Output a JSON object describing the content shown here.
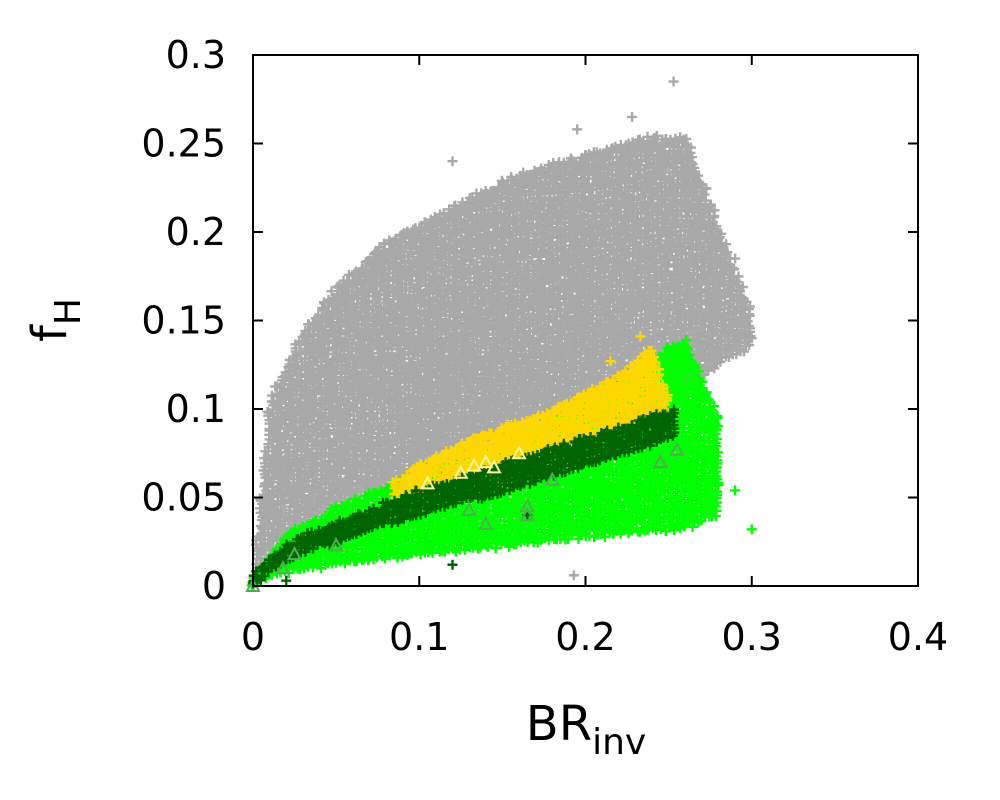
{
  "chart_data": {
    "type": "scatter",
    "title": "",
    "xlabel": {
      "main": "BR",
      "sub": "inv"
    },
    "ylabel": {
      "main": "f",
      "sub": "H"
    },
    "xlim": [
      0,
      0.4
    ],
    "ylim": [
      0,
      0.3
    ],
    "xticks": [
      0,
      0.1,
      0.2,
      0.3,
      0.4
    ],
    "xtick_labels": [
      "0",
      "0.1",
      "0.2",
      "0.3",
      "0.4"
    ],
    "yticks": [
      0,
      0.05,
      0.1,
      0.15,
      0.2,
      0.25,
      0.3
    ],
    "ytick_labels": [
      "0",
      "0.05",
      "0.1",
      "0.15",
      "0.2",
      "0.25",
      "0.3"
    ],
    "grid": false,
    "legend": "none",
    "series": [
      {
        "color": "#a9a9a9",
        "marker": "plus",
        "region": {
          "x": [
            0,
            0.01,
            0.03,
            0.05,
            0.08,
            0.1,
            0.12,
            0.15,
            0.18,
            0.2,
            0.22,
            0.24,
            0.26,
            0.28,
            0.3
          ],
          "y_lower": [
            0,
            0.02,
            0.035,
            0.045,
            0.055,
            0.06,
            0.066,
            0.074,
            0.082,
            0.088,
            0.094,
            0.1,
            0.108,
            0.125,
            0.135
          ],
          "y_upper": [
            0,
            0.1,
            0.14,
            0.165,
            0.19,
            0.2,
            0.21,
            0.225,
            0.235,
            0.24,
            0.245,
            0.25,
            0.25,
            0.2,
            0.15
          ]
        },
        "outliers": [
          [
            0.253,
            0.285
          ],
          [
            0.228,
            0.265
          ],
          [
            0.195,
            0.258
          ],
          [
            0.12,
            0.24
          ],
          [
            0.29,
            0.185
          ],
          [
            0.3,
            0.14
          ],
          [
            0.27,
            0.155
          ],
          [
            0.193,
            0.006
          ]
        ]
      },
      {
        "color": "#00ff00",
        "marker": "plus",
        "region": {
          "x": [
            0,
            0.02,
            0.05,
            0.1,
            0.15,
            0.2,
            0.24,
            0.26,
            0.28
          ],
          "y_lower": [
            0,
            0.007,
            0.012,
            0.017,
            0.022,
            0.027,
            0.031,
            0.032,
            0.04
          ],
          "y_upper": [
            0,
            0.025,
            0.04,
            0.06,
            0.075,
            0.1,
            0.125,
            0.135,
            0.09
          ]
        },
        "outliers": [
          [
            0.29,
            0.054
          ],
          [
            0.3,
            0.032
          ],
          [
            0.28,
            0.057
          ]
        ]
      },
      {
        "color": "#ffd700",
        "marker": "plus",
        "region": {
          "x": [
            0.085,
            0.12,
            0.15,
            0.18,
            0.2,
            0.22,
            0.24,
            0.25
          ],
          "y_lower": [
            0.05,
            0.06,
            0.068,
            0.076,
            0.082,
            0.088,
            0.094,
            0.098
          ],
          "y_upper": [
            0.055,
            0.075,
            0.085,
            0.095,
            0.105,
            0.115,
            0.13,
            0.1
          ]
        },
        "outliers": [
          [
            0.233,
            0.141
          ],
          [
            0.215,
            0.127
          ]
        ]
      },
      {
        "color": "#006400",
        "marker": "plus",
        "region": {
          "x": [
            0,
            0.02,
            0.05,
            0.1,
            0.15,
            0.2,
            0.25,
            0.255
          ],
          "y_lower": [
            0,
            0.014,
            0.025,
            0.04,
            0.053,
            0.067,
            0.082,
            0.085
          ],
          "y_upper": [
            0.002,
            0.02,
            0.032,
            0.05,
            0.065,
            0.08,
            0.095,
            0.1
          ]
        },
        "outliers": [
          [
            0.12,
            0.012
          ],
          [
            0.02,
            0.003
          ],
          [
            0.165,
            0.04
          ]
        ]
      },
      {
        "color": "#55aa55",
        "marker": "triangle",
        "points": [
          [
            0.0,
            0.0
          ],
          [
            0.018,
            0.01
          ],
          [
            0.025,
            0.018
          ],
          [
            0.05,
            0.023
          ],
          [
            0.13,
            0.043
          ],
          [
            0.14,
            0.035
          ],
          [
            0.165,
            0.045
          ],
          [
            0.165,
            0.04
          ],
          [
            0.18,
            0.06
          ],
          [
            0.255,
            0.077
          ],
          [
            0.245,
            0.07
          ]
        ]
      },
      {
        "color": "#fff4a0",
        "marker": "triangle",
        "points": [
          [
            0.125,
            0.064
          ],
          [
            0.133,
            0.068
          ],
          [
            0.145,
            0.067
          ],
          [
            0.16,
            0.075
          ],
          [
            0.105,
            0.058
          ],
          [
            0.14,
            0.07
          ]
        ]
      }
    ]
  }
}
